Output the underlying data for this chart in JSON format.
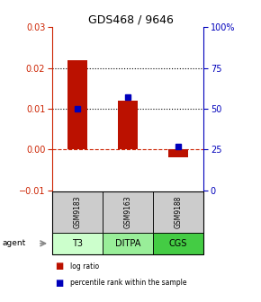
{
  "title": "GDS468 / 9646",
  "samples": [
    "GSM9183",
    "GSM9163",
    "GSM9188"
  ],
  "agents": [
    "T3",
    "DITPA",
    "CGS"
  ],
  "log_ratios": [
    0.022,
    0.012,
    -0.002
  ],
  "percentile_ranks": [
    50,
    57,
    27
  ],
  "ylim_left": [
    -0.01,
    0.03
  ],
  "ylim_right": [
    0,
    100
  ],
  "bar_color": "#bb1100",
  "dot_color": "#0000bb",
  "agent_colors": [
    "#ccffcc",
    "#99ee99",
    "#44cc44"
  ],
  "sample_bg": "#cccccc",
  "hline_dotted": [
    0.01,
    0.02
  ],
  "hline_zero_color": "#cc2200",
  "left_yticks": [
    -0.01,
    0.0,
    0.01,
    0.02,
    0.03
  ],
  "right_yticks": [
    0,
    25,
    50,
    75,
    100
  ],
  "right_ytick_labels": [
    "0",
    "25",
    "50",
    "75",
    "100%"
  ]
}
